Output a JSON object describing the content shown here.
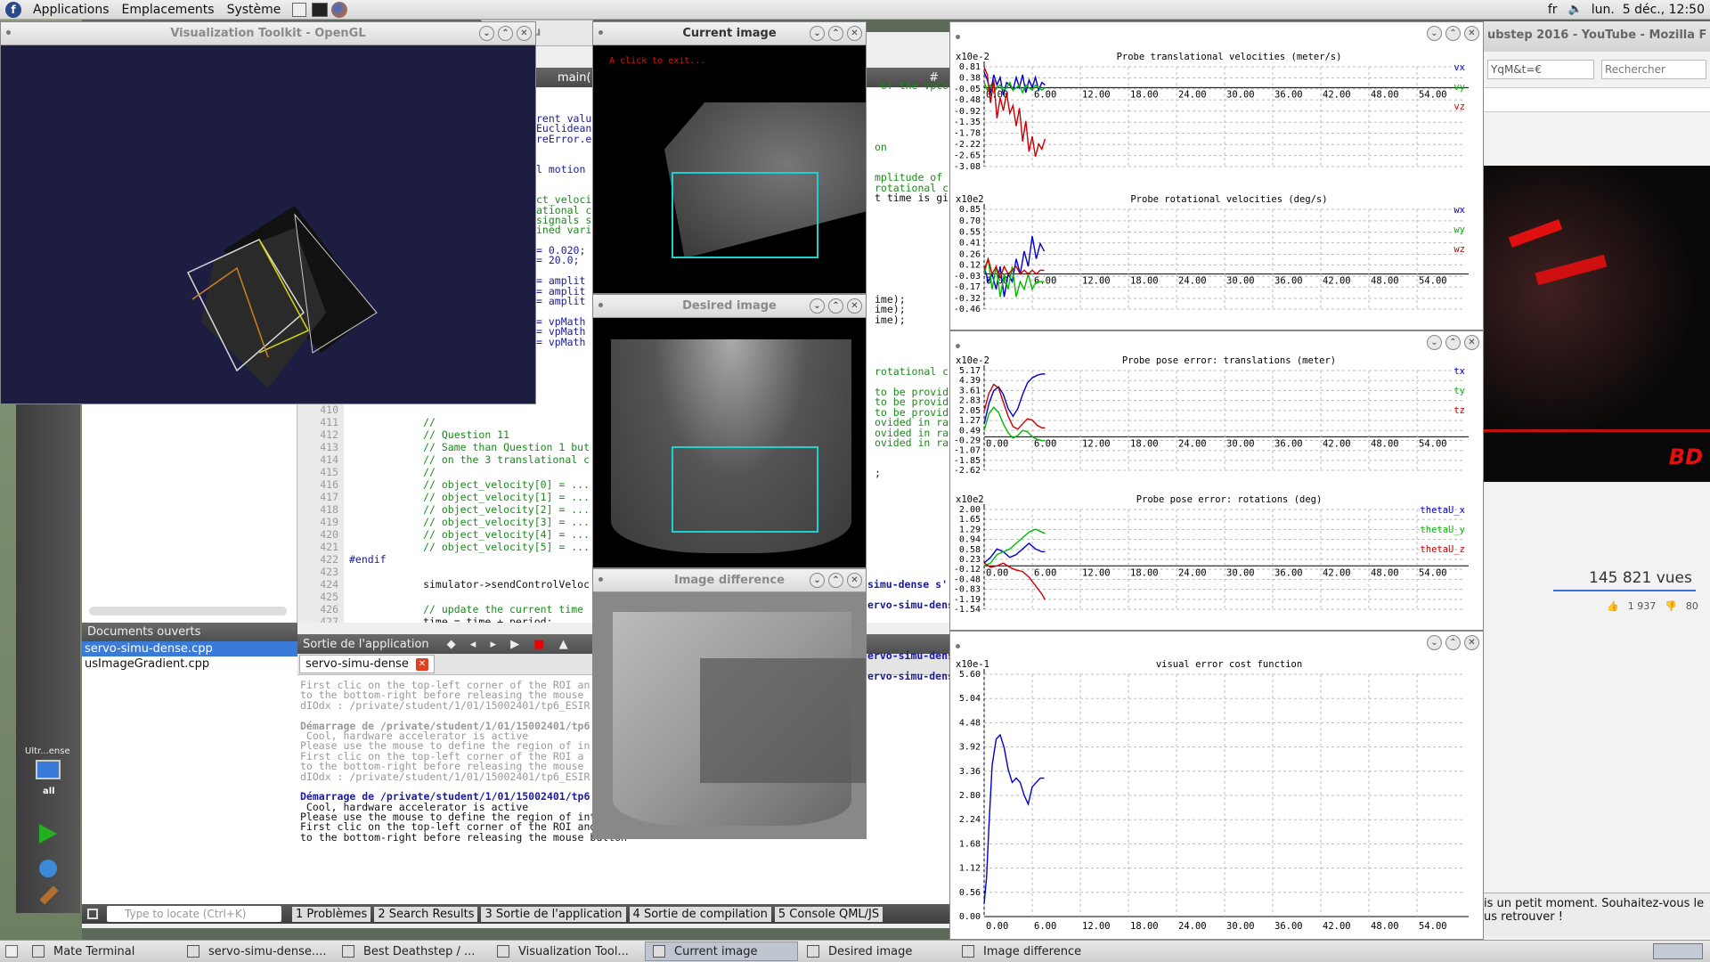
{
  "topbar": {
    "menus": [
      "Applications",
      "Emplacements",
      "Système"
    ],
    "keyboard": "fr",
    "clock": "lun.  5 déc., 12:50"
  },
  "windows": {
    "vtk": {
      "title": "Visualization Toolkit - OpenGL"
    },
    "current": {
      "title": "Current image",
      "hint": "A click to exit..."
    },
    "desired": {
      "title": "Desired image"
    },
    "diff": {
      "title": "Image difference"
    },
    "ultrasound_partial": "Ultrasou",
    "firefox_title_partial": "ubstep 2016 - YouTube - Mozilla F"
  },
  "firefox": {
    "url_partial": "YqM&t=€",
    "search_placeholder": "Rechercher",
    "views": "145 821 vues",
    "likes": "1 937",
    "dislikes": "80",
    "logo": "BD",
    "notice": "is un petit moment. Souhaitez-vous le\nus retrouver !"
  },
  "editor": {
    "tab_partial": "main(",
    "top_lines": [
      "rent valu",
      "Euclidean",
      "reError.e",
      "",
      "",
      "l motion",
      "",
      "",
      "ct_veloci",
      "ational c",
      "signals s",
      "ined vari",
      "",
      "= 0.020;",
      "= 20.0;",
      "",
      "= amplit",
      "= amplit",
      "= amplit",
      "",
      "= vpMath",
      "= vpMath",
      "= vpMath"
    ],
    "right_frags": [
      {
        "t": " of the vpCol",
        "y": 97
      },
      {
        "t": "on",
        "y": 166
      },
      {
        "t": "mplitude of C",
        "y": 200
      },
      {
        "t": "rotational co",
        "y": 212
      },
      {
        "t": "t time is giv",
        "y": 223
      },
      {
        "t": "ime);",
        "y": 337
      },
      {
        "t": "ime);",
        "y": 348
      },
      {
        "t": "ime);",
        "y": 360
      }
    ],
    "line_numbers": [
      "410",
      "411",
      "412",
      "413",
      "414",
      "415",
      "416",
      "417",
      "418",
      "419",
      "420",
      "421",
      "422",
      "423",
      "424",
      "425",
      "426",
      "427"
    ],
    "lines": [
      "",
      "            //",
      "            // Question 11",
      "            // Same than Question 1 but",
      "            // on the 3 translational c",
      "            //",
      "            // object_velocity[0] = ...",
      "            // object_velocity[1] = ...",
      "            // object_velocity[2] = ...",
      "            // object_velocity[3] = ...",
      "            // object_velocity[4] = ...",
      "            // object_velocity[5] = ...",
      "#endif",
      "",
      "            simulator->sendControlVeloc",
      "",
      "            // update the current time",
      "            time = time + period;"
    ],
    "right_lines": [
      {
        "t": "rotational c",
        "y": 418
      },
      {
        "t": "to be provid",
        "y": 441
      },
      {
        "t": "to be provid",
        "y": 452
      },
      {
        "t": "to be provid",
        "y": 464
      },
      {
        "t": "ovided in rad",
        "y": 475
      },
      {
        "t": "ovided in rad",
        "y": 487
      },
      {
        "t": "ovided in rad",
        "y": 498
      },
      {
        "t": ";",
        "y": 532
      }
    ]
  },
  "open_docs": {
    "header": "Documents ouverts",
    "items": [
      "servo-simu-dense.cpp",
      "usImageGradient.cpp"
    ]
  },
  "output": {
    "header": "Sortie de l'application",
    "tab": "servo-simu-dense",
    "lines": [
      {
        "t": "First clic on the top-left corner of the ROI an",
        "c": "g"
      },
      {
        "t": "to the bottom-right before releasing the mouse",
        "c": "g"
      },
      {
        "t": "dIOdx : /private/student/1/01/15002401/tp6_ESIR",
        "c": "g"
      },
      {
        "t": "",
        "c": "g"
      },
      {
        "t": "Démarrage de /private/student/1/01/15002401/tp6",
        "c": "gb"
      },
      {
        "t": " Cool, hardware accelerator is active",
        "c": "g"
      },
      {
        "t": "Please use the mouse to define the region of in",
        "c": "g"
      },
      {
        "t": "First clic on the top-left corner of the ROI a",
        "c": "g"
      },
      {
        "t": "to the bottom-right before releasing the mouse",
        "c": "g"
      },
      {
        "t": "dIOdx : /private/student/1/01/15002401/tp6_ESIR",
        "c": "g"
      },
      {
        "t": "",
        "c": "g"
      },
      {
        "t": "Démarrage de /private/student/1/01/15002401/tp6",
        "c": "bb"
      },
      {
        "t": " Cool, hardware accelerator is active",
        "c": "k"
      },
      {
        "t": "Please use the mouse to define the region of interest (ROI)",
        "c": "k"
      },
      {
        "t": "First clic on the top-left corner of the ROI and then move the mouse pointer",
        "c": "k"
      },
      {
        "t": "to the bottom-right before releasing the mouse button",
        "c": "k"
      }
    ],
    "right_frags": [
      {
        "t": "simu-dense s'",
        "y": 656
      },
      {
        "t": "ervo-simu-dense",
        "y": 679
      },
      {
        "t": "ervo-simu-dense s'",
        "y": 736
      },
      {
        "t": "ervo-simu-dens",
        "y": 759
      }
    ]
  },
  "statusbar": {
    "locate_placeholder": "Type to locate (Ctrl+K)",
    "tabs": [
      "1 Problèmes",
      "2 Search Results",
      "3 Sortie de l'application",
      "4 Sortie de compilation",
      "5 Console QML/JS"
    ]
  },
  "sidebar": {
    "target": "Ultr...ense",
    "config": "all"
  },
  "taskbar": [
    "Mate Terminal",
    "servo-simu-dense....",
    "Best Deathstep / ...",
    "Visualization Tool...",
    "Current image",
    "Desired image",
    "Image difference"
  ],
  "colors": {
    "vx": "#0000cc",
    "vy": "#00bb00",
    "vz": "#cc0000",
    "roi": "#1fd0d0",
    "vtk_bg": "#1d1d42"
  },
  "chart_data": [
    {
      "type": "line",
      "title": "Probe translational velocities (meter/s)",
      "scale_label": "x10e-2",
      "yticks": [
        "0.81",
        "0.38",
        "-0.05",
        "-0.48",
        "-0.92",
        "-1.35",
        "-1.78",
        "-2.22",
        "-2.65",
        "-3.08"
      ],
      "xticks": [
        "0.00",
        "6.00",
        "12.00",
        "18.00",
        "24.00",
        "30.00",
        "36.00",
        "42.00",
        "48.00",
        "54.00"
      ],
      "legend": [
        "vx",
        "vy",
        "vz"
      ],
      "series": [
        {
          "name": "vx",
          "x": [
            0,
            0.4,
            0.8,
            1.2,
            1.6,
            2,
            2.4,
            2.8,
            3.2,
            3.6,
            4,
            4.4,
            4.8,
            5.2,
            5.6,
            6,
            6.4,
            6.8,
            7.2,
            7.6
          ],
          "values": [
            0.6,
            0.3,
            -0.2,
            0.5,
            0.1,
            0.4,
            -0.3,
            0.2,
            0.1,
            -0.1,
            0.4,
            0.0,
            0.5,
            -0.2,
            0.3,
            0.0,
            0.4,
            -0.1,
            0.2,
            0.1
          ]
        },
        {
          "name": "vy",
          "x": [
            0,
            0.4,
            0.8,
            1.2,
            1.6,
            2,
            2.4,
            2.8,
            3.2,
            3.6,
            4,
            4.4,
            4.8,
            5.2,
            5.6,
            6,
            6.4,
            6.8,
            7.2,
            7.6
          ],
          "values": [
            0.2,
            -0.1,
            0.1,
            -0.2,
            0.0,
            0.1,
            -0.1,
            0.0,
            0.2,
            -0.1,
            0.0,
            0.1,
            -0.2,
            0.1,
            0.0,
            -0.1,
            0.1,
            0.0,
            -0.1,
            0.0
          ]
        },
        {
          "name": "vz",
          "x": [
            0,
            0.4,
            0.8,
            1.2,
            1.6,
            2,
            2.4,
            2.8,
            3.2,
            3.6,
            4,
            4.4,
            4.8,
            5.2,
            5.6,
            6,
            6.4,
            6.8,
            7.2,
            7.6
          ],
          "values": [
            0.8,
            0.5,
            -0.6,
            0.3,
            -1.2,
            -0.4,
            -0.9,
            -0.2,
            -1.0,
            -0.7,
            -1.5,
            -0.8,
            -2.1,
            -1.3,
            -2.5,
            -1.9,
            -2.7,
            -2.2,
            -2.4,
            -2.0
          ]
        }
      ]
    },
    {
      "type": "line",
      "title": "Probe rotational velocities (deg/s)",
      "scale_label": "x10e2",
      "yticks": [
        "0.85",
        "0.70",
        "0.55",
        "0.41",
        "0.26",
        "0.12",
        "-0.03",
        "-0.17",
        "-0.32",
        "-0.46"
      ],
      "xticks": [
        "0.00",
        "6.00",
        "12.00",
        "18.00",
        "24.00",
        "30.00",
        "36.00",
        "42.00",
        "48.00",
        "54.00"
      ],
      "legend": [
        "wx",
        "wy",
        "wz"
      ],
      "series": [
        {
          "name": "wx",
          "x": [
            0,
            0.5,
            1,
            1.5,
            2,
            2.5,
            3,
            3.5,
            4,
            4.5,
            5,
            5.5,
            6,
            6.5,
            7,
            7.5
          ],
          "values": [
            0.1,
            -0.1,
            0.0,
            -0.2,
            0.1,
            -0.3,
            0.0,
            -0.1,
            0.2,
            0.0,
            0.3,
            0.1,
            0.5,
            0.2,
            0.4,
            0.3
          ]
        },
        {
          "name": "wy",
          "x": [
            0,
            0.5,
            1,
            1.5,
            2,
            2.5,
            3,
            3.5,
            4,
            4.5,
            5,
            5.5,
            6,
            6.5,
            7,
            7.5
          ],
          "values": [
            0.0,
            0.2,
            -0.2,
            0.1,
            -0.3,
            0.0,
            -0.2,
            0.1,
            -0.3,
            -0.1,
            -0.2,
            0.0,
            -0.2,
            -0.1,
            -0.1,
            -0.1
          ]
        },
        {
          "name": "wz",
          "x": [
            0,
            0.5,
            1,
            1.5,
            2,
            2.5,
            3,
            3.5,
            4,
            4.5,
            5,
            5.5,
            6,
            6.5,
            7,
            7.5
          ],
          "values": [
            0.05,
            0.2,
            0.0,
            0.1,
            -0.05,
            0.1,
            0.0,
            0.05,
            0.1,
            0.0,
            0.05,
            0.0,
            0.05,
            0.0,
            0.05,
            0.05
          ]
        }
      ]
    },
    {
      "type": "line",
      "title": "Probe pose error: translations (meter)",
      "scale_label": "x10e-2",
      "yticks": [
        "5.17",
        "4.39",
        "3.61",
        "2.83",
        "2.05",
        "1.27",
        "0.49",
        "-0.29",
        "-1.07",
        "-1.85",
        "-2.62"
      ],
      "xticks": [
        "0.00",
        "6.00",
        "12.00",
        "18.00",
        "24.00",
        "30.00",
        "36.00",
        "42.00",
        "48.00",
        "54.00"
      ],
      "legend": [
        "tx",
        "ty",
        "tz"
      ],
      "series": [
        {
          "name": "tx",
          "x": [
            0,
            0.6,
            1.2,
            1.8,
            2.4,
            3,
            3.6,
            4.2,
            4.8,
            5.4,
            6,
            6.6,
            7.2,
            7.6
          ],
          "values": [
            1.0,
            2.6,
            3.6,
            3.9,
            3.3,
            2.2,
            1.6,
            2.2,
            3.3,
            4.2,
            4.6,
            4.8,
            4.9,
            4.9
          ]
        },
        {
          "name": "ty",
          "x": [
            0,
            0.6,
            1.2,
            1.8,
            2.4,
            3,
            3.6,
            4.2,
            4.8,
            5.4,
            6,
            6.6,
            7.2,
            7.6
          ],
          "values": [
            0.5,
            1.8,
            2.3,
            1.9,
            1.0,
            0.3,
            -0.1,
            0.1,
            0.5,
            0.4,
            0.0,
            -0.2,
            -0.3,
            -0.3
          ]
        },
        {
          "name": "tz",
          "x": [
            0,
            0.6,
            1.2,
            1.8,
            2.4,
            3,
            3.6,
            4.2,
            4.8,
            5.4,
            6,
            6.6,
            7.2,
            7.6
          ],
          "values": [
            2.0,
            3.4,
            4.1,
            3.8,
            2.7,
            1.6,
            0.8,
            0.6,
            1.0,
            1.4,
            1.3,
            0.9,
            0.7,
            0.7
          ]
        }
      ]
    },
    {
      "type": "line",
      "title": "Probe pose error: rotations (deg)",
      "scale_label": "x10e2",
      "yticks": [
        "2.00",
        "1.65",
        "1.29",
        "0.94",
        "0.58",
        "0.23",
        "-0.12",
        "-0.48",
        "-0.83",
        "-1.19",
        "-1.54"
      ],
      "xticks": [
        "0.00",
        "6.00",
        "12.00",
        "18.00",
        "24.00",
        "30.00",
        "36.00",
        "42.00",
        "48.00",
        "54.00"
      ],
      "legend": [
        "thetaU_x",
        "thetaU_y",
        "thetaU_z"
      ],
      "series": [
        {
          "name": "thetaU_x",
          "x": [
            0,
            0.8,
            1.6,
            2.4,
            3.2,
            4,
            4.8,
            5.6,
            6.4,
            7.2,
            7.6
          ],
          "values": [
            0.1,
            0.3,
            0.6,
            0.5,
            0.3,
            0.4,
            0.6,
            0.8,
            0.6,
            0.5,
            0.5
          ]
        },
        {
          "name": "thetaU_y",
          "x": [
            0,
            0.8,
            1.6,
            2.4,
            3.2,
            4,
            4.8,
            5.6,
            6.4,
            7.2,
            7.6
          ],
          "values": [
            0.0,
            0.1,
            0.4,
            0.5,
            0.6,
            0.8,
            1.0,
            1.2,
            1.3,
            1.2,
            1.15
          ]
        },
        {
          "name": "thetaU_z",
          "x": [
            0,
            0.8,
            1.6,
            2.4,
            3.2,
            4,
            4.8,
            5.6,
            6.4,
            7.2,
            7.6
          ],
          "values": [
            0.1,
            -0.05,
            0.0,
            0.1,
            -0.05,
            -0.15,
            -0.2,
            -0.4,
            -0.7,
            -1.0,
            -1.2
          ]
        }
      ]
    },
    {
      "type": "line",
      "title": "visual error cost function",
      "scale_label": "x10e-1",
      "yticks": [
        "5.60",
        "5.04",
        "4.48",
        "3.92",
        "3.36",
        "2.80",
        "2.24",
        "1.68",
        "1.12",
        "0.56",
        "0.00"
      ],
      "xticks": [
        "0.00",
        "6.00",
        "12.00",
        "18.00",
        "24.00",
        "30.00",
        "36.00",
        "42.00",
        "48.00",
        "54.00"
      ],
      "legend": [],
      "series": [
        {
          "name": "cost",
          "x": [
            0,
            0.3,
            0.6,
            1.0,
            1.5,
            2.0,
            2.5,
            3.0,
            3.5,
            4.0,
            4.5,
            5.0,
            5.5,
            6.0,
            6.5,
            7.0,
            7.5
          ],
          "values": [
            0.3,
            0.9,
            2.1,
            3.5,
            4.1,
            4.2,
            3.9,
            3.4,
            3.1,
            3.2,
            3.1,
            2.8,
            2.6,
            3.0,
            3.1,
            3.2,
            3.2
          ]
        }
      ]
    }
  ]
}
